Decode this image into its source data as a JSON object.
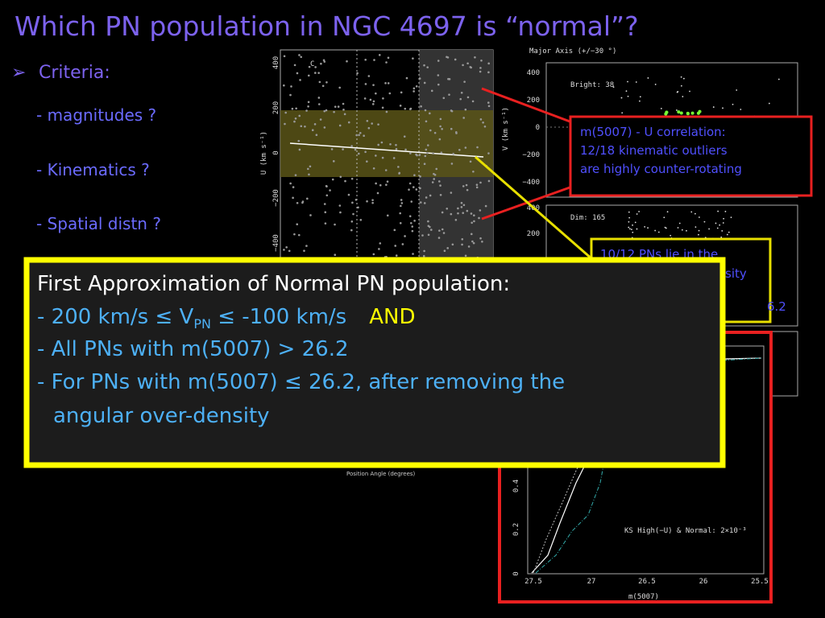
{
  "title": "Which PN population in NGC 4697 is “normal”?",
  "criteria": {
    "heading": "Criteria:",
    "items": [
      "- magnitudes ?",
      "- Kinematics ?",
      "- Spatial distn ?"
    ]
  },
  "left_plot": {
    "label": "C",
    "y_label": "U (km s⁻¹)",
    "yticks": [
      "400",
      "200",
      "0",
      "−200",
      "−400"
    ],
    "x_label": "Position Angle (degrees)"
  },
  "right_top_plot": {
    "title": "Major Axis (+/−30 °)",
    "label": "Bright: 38",
    "y_label": "V (km s⁻¹)",
    "yticks": [
      "400",
      "200",
      "0",
      "−200",
      "−400"
    ]
  },
  "right_mid_plot": {
    "label": "Dim: 165",
    "yticks": [
      "400",
      "200"
    ]
  },
  "ks_plot": {
    "annotation": "KS High(−U) & Normal: 2×10⁻³",
    "x_label": "m(5007)",
    "xticks": [
      "27.5",
      "27",
      "26.5",
      "26",
      "25.5"
    ],
    "yticks": [
      "0",
      "0.2",
      "0.4"
    ]
  },
  "callout_red": {
    "lines": [
      "m(5007) - U correlation:",
      "12/18 kinematic outliers",
      "are highly counter-rotating"
    ]
  },
  "callout_yellow": {
    "lines": [
      "10/12 PNs lie in the",
      "sity",
      "6.2"
    ]
  },
  "main_box": {
    "heading": "First Approximation of Normal PN population:",
    "line1": {
      "start": "- 200 km/s ≤ V",
      "sub": "PN",
      "end": " ≤ -100 km/s",
      "emph": "AND"
    },
    "lines": [
      "- All PNs with m(5007) > 26.2",
      "- For PNs with m(5007) ≤ 26.2, after removing the",
      "angular over-density"
    ]
  }
}
